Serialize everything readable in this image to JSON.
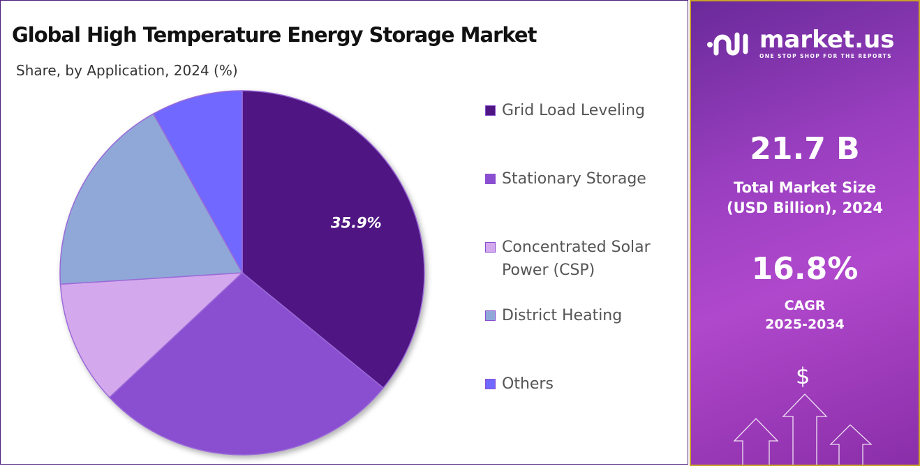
{
  "title": "Global High Temperature Energy Storage Market",
  "subtitle": "Share, by Application, 2024 (%)",
  "chart_data": {
    "type": "pie",
    "title": "Global High Temperature Energy Storage Market",
    "subtitle": "Share, by Application, 2024 (%)",
    "categories": [
      "Grid Load Leveling",
      "Stationary Storage",
      "Concentrated Solar Power (CSP)",
      "District Heating",
      "Others"
    ],
    "values": [
      35.9,
      27.1,
      11.0,
      17.9,
      8.1
    ],
    "colors": [
      "#4f1583",
      "#8a4fd0",
      "#d4a8ec",
      "#8fa8d8",
      "#7068ff"
    ],
    "data_labels": [
      "35.9%",
      "",
      "",
      "",
      ""
    ],
    "start_angle": "12 o'clock",
    "direction": "clockwise",
    "legend_position": "right"
  },
  "legend": {
    "items": [
      {
        "label": "Grid Load Leveling",
        "color": "#4f1583"
      },
      {
        "label": "Stationary Storage",
        "color": "#8a4fd0"
      },
      {
        "label": "Concentrated Solar Power (CSP)",
        "color": "#d4a8ec"
      },
      {
        "label": "District Heating",
        "color": "#8fa8d8"
      },
      {
        "label": "Others",
        "color": "#7068ff"
      }
    ]
  },
  "side_panel": {
    "brand": "market.us",
    "tagline": "ONE STOP SHOP FOR THE REPORTS",
    "market_size": "21.7 B",
    "market_size_label_1": "Total Market Size",
    "market_size_label_2": "(USD Billion), 2024",
    "cagr": "16.8%",
    "cagr_label": "CAGR",
    "cagr_period": "2025-2034",
    "dollar_symbol": "$",
    "icons": [
      "market-us-logo-icon",
      "dollar-icon",
      "up-arrow-icon"
    ]
  }
}
